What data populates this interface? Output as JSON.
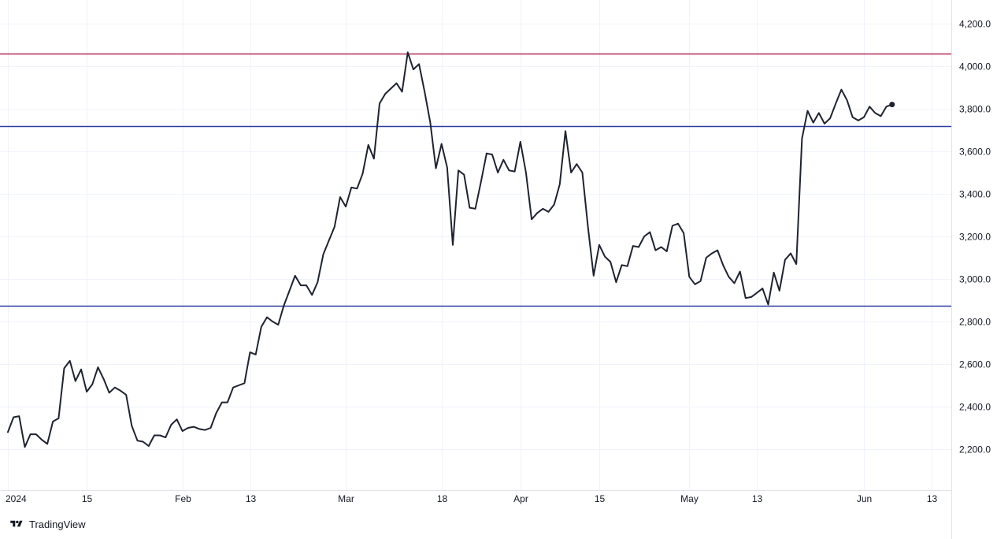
{
  "watermark": {
    "brand": "TradingView",
    "icon": "tradingview-logo-icon"
  },
  "colors": {
    "line": "#1f2330",
    "resistance": "#b22a55",
    "support": "#2b3ea0",
    "grid": "#f0f3fa",
    "axis_text": "#131722"
  },
  "chart_data": {
    "type": "line",
    "title": "",
    "xlabel": "",
    "ylabel": "",
    "ylim": [
      2070,
      4270
    ],
    "y_ticks": [
      "2,200.0",
      "2,400.0",
      "2,600.0",
      "2,800.0",
      "3,000.0",
      "3,200.0",
      "3,400.0",
      "3,600.0",
      "3,800.0",
      "4,000.0",
      "4,200.0"
    ],
    "x_ticks": [
      {
        "label": "2024",
        "date": "2024-01-01"
      },
      {
        "label": "15",
        "date": "2024-01-15"
      },
      {
        "label": "Feb",
        "date": "2024-02-01"
      },
      {
        "label": "13",
        "date": "2024-02-13"
      },
      {
        "label": "Mar",
        "date": "2024-03-01"
      },
      {
        "label": "18",
        "date": "2024-03-18"
      },
      {
        "label": "Apr",
        "date": "2024-04-01"
      },
      {
        "label": "15",
        "date": "2024-04-15"
      },
      {
        "label": "May",
        "date": "2024-05-01"
      },
      {
        "label": "13",
        "date": "2024-05-13"
      },
      {
        "label": "Jun",
        "date": "2024-06-01"
      },
      {
        "label": "13",
        "date": "2024-06-13"
      }
    ],
    "x_range": [
      "2024-01-01",
      "2024-06-14"
    ],
    "grid": true,
    "horizontal_lines": [
      {
        "value": 4060,
        "color": "#b22a55"
      },
      {
        "value": 3720,
        "color": "#2b3ea0"
      },
      {
        "value": 2875,
        "color": "#2b3ea0"
      }
    ],
    "series": [
      {
        "points": [
          [
            "2024-01-01",
            2280
          ],
          [
            "2024-01-02",
            2350
          ],
          [
            "2024-01-03",
            2355
          ],
          [
            "2024-01-04",
            2210
          ],
          [
            "2024-01-05",
            2270
          ],
          [
            "2024-01-06",
            2270
          ],
          [
            "2024-01-07",
            2245
          ],
          [
            "2024-01-08",
            2225
          ],
          [
            "2024-01-09",
            2330
          ],
          [
            "2024-01-10",
            2345
          ],
          [
            "2024-01-11",
            2580
          ],
          [
            "2024-01-12",
            2615
          ],
          [
            "2024-01-13",
            2520
          ],
          [
            "2024-01-14",
            2575
          ],
          [
            "2024-01-15",
            2470
          ],
          [
            "2024-01-16",
            2505
          ],
          [
            "2024-01-17",
            2585
          ],
          [
            "2024-01-18",
            2530
          ],
          [
            "2024-01-19",
            2465
          ],
          [
            "2024-01-20",
            2490
          ],
          [
            "2024-01-21",
            2475
          ],
          [
            "2024-01-22",
            2455
          ],
          [
            "2024-01-23",
            2310
          ],
          [
            "2024-01-24",
            2240
          ],
          [
            "2024-01-25",
            2235
          ],
          [
            "2024-01-26",
            2215
          ],
          [
            "2024-01-27",
            2265
          ],
          [
            "2024-01-28",
            2265
          ],
          [
            "2024-01-29",
            2255
          ],
          [
            "2024-01-30",
            2315
          ],
          [
            "2024-01-31",
            2340
          ],
          [
            "2024-02-01",
            2285
          ],
          [
            "2024-02-02",
            2300
          ],
          [
            "2024-02-03",
            2305
          ],
          [
            "2024-02-04",
            2295
          ],
          [
            "2024-02-05",
            2290
          ],
          [
            "2024-02-06",
            2300
          ],
          [
            "2024-02-07",
            2370
          ],
          [
            "2024-02-08",
            2420
          ],
          [
            "2024-02-09",
            2420
          ],
          [
            "2024-02-10",
            2490
          ],
          [
            "2024-02-11",
            2500
          ],
          [
            "2024-02-12",
            2510
          ],
          [
            "2024-02-13",
            2655
          ],
          [
            "2024-02-14",
            2645
          ],
          [
            "2024-02-15",
            2775
          ],
          [
            "2024-02-16",
            2820
          ],
          [
            "2024-02-17",
            2800
          ],
          [
            "2024-02-18",
            2785
          ],
          [
            "2024-02-19",
            2875
          ],
          [
            "2024-02-20",
            2945
          ],
          [
            "2024-02-21",
            3015
          ],
          [
            "2024-02-22",
            2970
          ],
          [
            "2024-02-23",
            2970
          ],
          [
            "2024-02-24",
            2925
          ],
          [
            "2024-02-25",
            2985
          ],
          [
            "2024-02-26",
            3115
          ],
          [
            "2024-02-27",
            3180
          ],
          [
            "2024-02-28",
            3245
          ],
          [
            "2024-02-29",
            3385
          ],
          [
            "2024-03-01",
            3340
          ],
          [
            "2024-03-02",
            3430
          ],
          [
            "2024-03-03",
            3425
          ],
          [
            "2024-03-04",
            3495
          ],
          [
            "2024-03-05",
            3630
          ],
          [
            "2024-03-06",
            3565
          ],
          [
            "2024-03-07",
            3825
          ],
          [
            "2024-03-08",
            3870
          ],
          [
            "2024-03-09",
            3895
          ],
          [
            "2024-03-10",
            3920
          ],
          [
            "2024-03-11",
            3880
          ],
          [
            "2024-03-12",
            4065
          ],
          [
            "2024-03-13",
            3985
          ],
          [
            "2024-03-14",
            4010
          ],
          [
            "2024-03-15",
            3880
          ],
          [
            "2024-03-16",
            3735
          ],
          [
            "2024-03-17",
            3520
          ],
          [
            "2024-03-18",
            3635
          ],
          [
            "2024-03-19",
            3525
          ],
          [
            "2024-03-20",
            3160
          ],
          [
            "2024-03-21",
            3510
          ],
          [
            "2024-03-22",
            3490
          ],
          [
            "2024-03-23",
            3335
          ],
          [
            "2024-03-24",
            3330
          ],
          [
            "2024-03-25",
            3455
          ],
          [
            "2024-03-26",
            3590
          ],
          [
            "2024-03-27",
            3585
          ],
          [
            "2024-03-28",
            3500
          ],
          [
            "2024-03-29",
            3560
          ],
          [
            "2024-03-30",
            3510
          ],
          [
            "2024-03-31",
            3505
          ],
          [
            "2024-04-01",
            3645
          ],
          [
            "2024-04-02",
            3500
          ],
          [
            "2024-04-03",
            3280
          ],
          [
            "2024-04-04",
            3310
          ],
          [
            "2024-04-05",
            3330
          ],
          [
            "2024-04-06",
            3315
          ],
          [
            "2024-04-07",
            3350
          ],
          [
            "2024-04-08",
            3445
          ],
          [
            "2024-04-09",
            3695
          ],
          [
            "2024-04-10",
            3500
          ],
          [
            "2024-04-11",
            3540
          ],
          [
            "2024-04-12",
            3500
          ],
          [
            "2024-04-13",
            3245
          ],
          [
            "2024-04-14",
            3015
          ],
          [
            "2024-04-15",
            3160
          ],
          [
            "2024-04-16",
            3105
          ],
          [
            "2024-04-17",
            3080
          ],
          [
            "2024-04-18",
            2985
          ],
          [
            "2024-04-19",
            3065
          ],
          [
            "2024-04-20",
            3060
          ],
          [
            "2024-04-21",
            3155
          ],
          [
            "2024-04-22",
            3150
          ],
          [
            "2024-04-23",
            3200
          ],
          [
            "2024-04-24",
            3220
          ],
          [
            "2024-04-25",
            3135
          ],
          [
            "2024-04-26",
            3150
          ],
          [
            "2024-04-27",
            3130
          ],
          [
            "2024-04-28",
            3250
          ],
          [
            "2024-04-29",
            3260
          ],
          [
            "2024-04-30",
            3215
          ],
          [
            "2024-05-01",
            3010
          ],
          [
            "2024-05-02",
            2975
          ],
          [
            "2024-05-03",
            2990
          ],
          [
            "2024-05-04",
            3100
          ],
          [
            "2024-05-05",
            3120
          ],
          [
            "2024-05-06",
            3135
          ],
          [
            "2024-05-07",
            3065
          ],
          [
            "2024-05-08",
            3010
          ],
          [
            "2024-05-09",
            2980
          ],
          [
            "2024-05-10",
            3035
          ],
          [
            "2024-05-11",
            2910
          ],
          [
            "2024-05-12",
            2915
          ],
          [
            "2024-05-13",
            2935
          ],
          [
            "2024-05-14",
            2955
          ],
          [
            "2024-05-15",
            2880
          ],
          [
            "2024-05-16",
            3030
          ],
          [
            "2024-05-17",
            2945
          ],
          [
            "2024-05-18",
            3090
          ],
          [
            "2024-05-19",
            3120
          ],
          [
            "2024-05-20",
            3070
          ],
          [
            "2024-05-21",
            3660
          ],
          [
            "2024-05-22",
            3790
          ],
          [
            "2024-05-23",
            3735
          ],
          [
            "2024-05-24",
            3780
          ],
          [
            "2024-05-25",
            3730
          ],
          [
            "2024-05-26",
            3755
          ],
          [
            "2024-05-27",
            3825
          ],
          [
            "2024-05-28",
            3890
          ],
          [
            "2024-05-29",
            3840
          ],
          [
            "2024-05-30",
            3760
          ],
          [
            "2024-05-31",
            3745
          ],
          [
            "2024-06-01",
            3760
          ],
          [
            "2024-06-02",
            3810
          ],
          [
            "2024-06-03",
            3780
          ],
          [
            "2024-06-04",
            3765
          ],
          [
            "2024-06-05",
            3810
          ],
          [
            "2024-06-06",
            3820
          ]
        ]
      }
    ],
    "last_point_marker": true
  }
}
